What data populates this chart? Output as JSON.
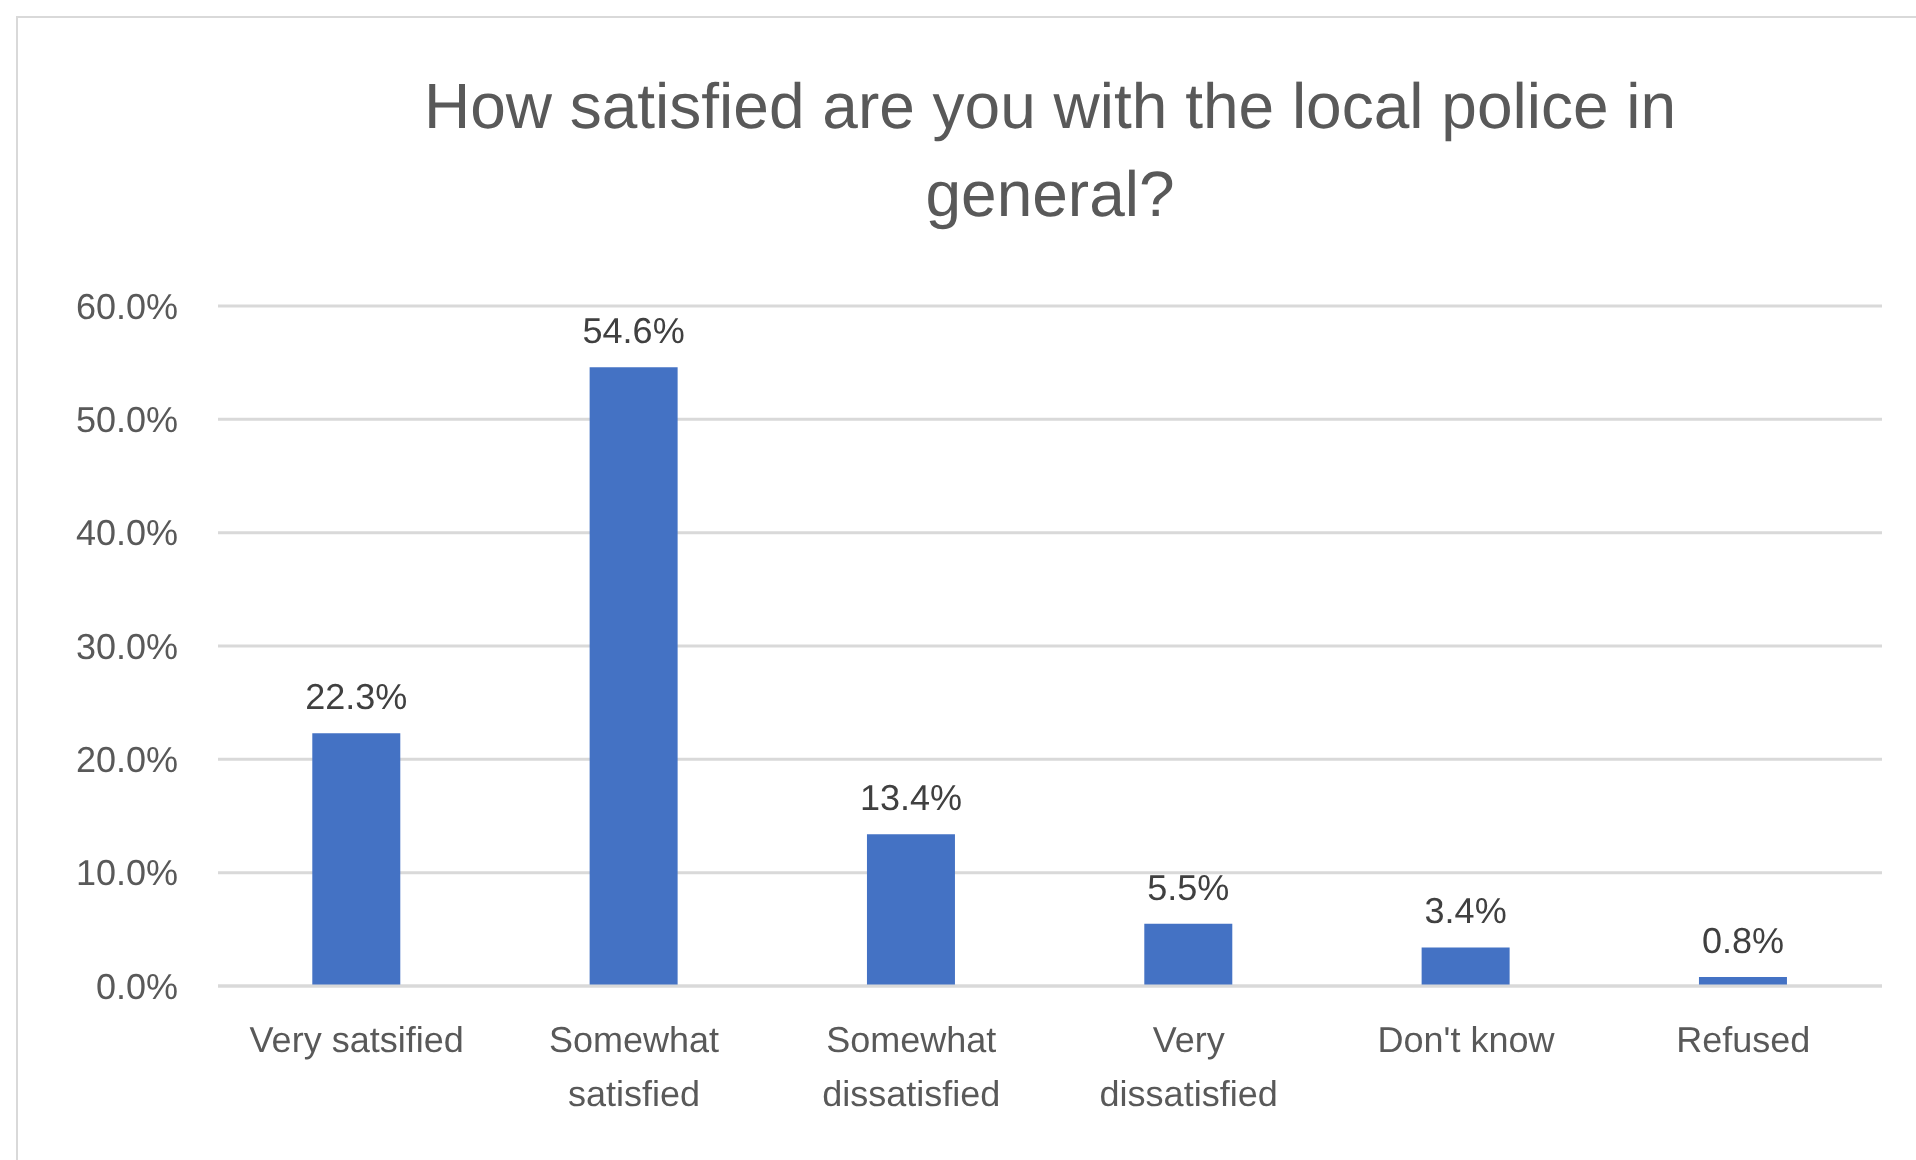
{
  "chart_data": {
    "type": "bar",
    "title": "How satisfied are you with the local police in general?",
    "categories": [
      "Very satsified",
      "Somewhat satisfied",
      "Somewhat dissatisfied",
      "Very dissatisfied",
      "Don't know",
      "Refused"
    ],
    "values": [
      22.3,
      54.6,
      13.4,
      5.5,
      3.4,
      0.8
    ],
    "value_labels": [
      "22.3%",
      "54.6%",
      "13.4%",
      "5.5%",
      "3.4%",
      "0.8%"
    ],
    "color": "#4472c4",
    "ylim": [
      0,
      60
    ],
    "yticks": [
      {
        "value": 0,
        "label": "0.0%"
      },
      {
        "value": 10,
        "label": "10.0%"
      },
      {
        "value": 20,
        "label": "20.0%"
      },
      {
        "value": 30,
        "label": "30.0%"
      },
      {
        "value": 40,
        "label": "40.0%"
      },
      {
        "value": 50,
        "label": "50.0%"
      },
      {
        "value": 60,
        "label": "60.0%"
      }
    ],
    "grid": "y"
  }
}
